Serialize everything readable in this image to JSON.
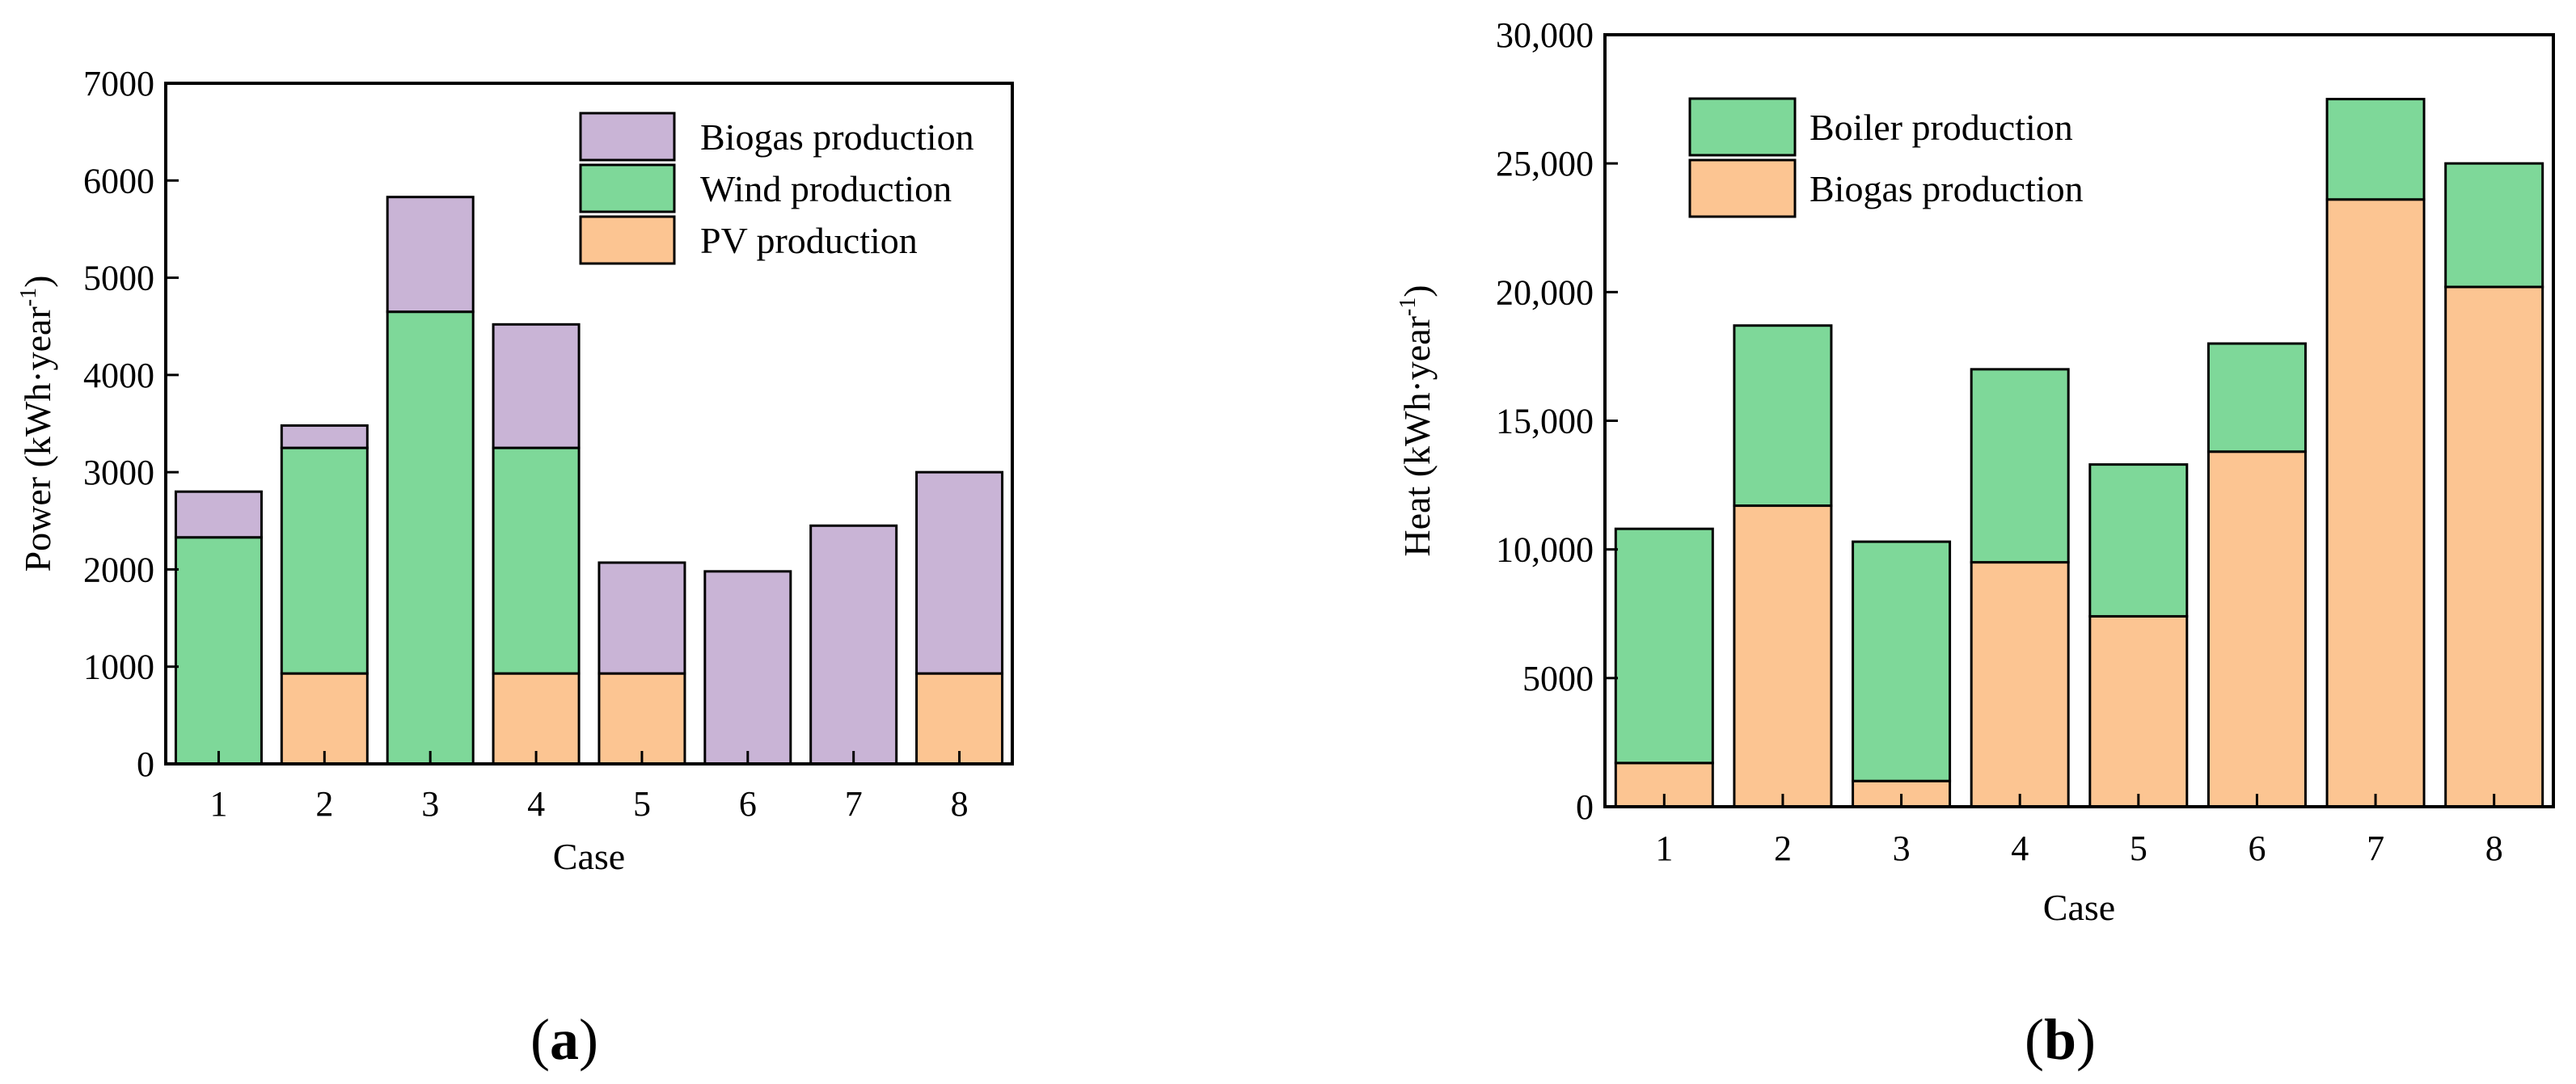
{
  "colors": {
    "biogas_power": "#c9b4d6",
    "wind": "#7ed899",
    "pv": "#fcc592",
    "boiler": "#7ed899",
    "biogas_heat": "#fcc592",
    "stroke": "#000000"
  },
  "chart_data": [
    {
      "type": "bar",
      "stacked": true,
      "panel": "a",
      "categories": [
        "1",
        "2",
        "3",
        "4",
        "5",
        "6",
        "7",
        "8"
      ],
      "series": [
        {
          "name": "PV production",
          "values": [
            0,
            930,
            0,
            930,
            930,
            0,
            0,
            930
          ]
        },
        {
          "name": "Wind production",
          "values": [
            2330,
            2320,
            4650,
            2320,
            0,
            0,
            0,
            0
          ]
        },
        {
          "name": "Biogas production",
          "values": [
            470,
            230,
            1180,
            1270,
            1140,
            1980,
            2450,
            2070
          ]
        }
      ],
      "legend": [
        "Biogas production",
        "Wind production",
        "PV production"
      ],
      "legend_position": "top-right",
      "xlabel": "Case",
      "ylabel_main": "Power (kWh·year",
      "ylabel_sup": "-1",
      "ylabel_end": ")",
      "ylim": [
        0,
        7000
      ],
      "yticks": [
        0,
        1000,
        2000,
        3000,
        4000,
        5000,
        6000,
        7000
      ],
      "ytick_labels": [
        "0",
        "1000",
        "2000",
        "3000",
        "4000",
        "5000",
        "6000",
        "7000"
      ],
      "panel_label_left": "(",
      "panel_label_letter": "a",
      "panel_label_right": ")"
    },
    {
      "type": "bar",
      "stacked": true,
      "panel": "b",
      "categories": [
        "1",
        "2",
        "3",
        "4",
        "5",
        "6",
        "7",
        "8"
      ],
      "series": [
        {
          "name": "Biogas production",
          "values": [
            1700,
            11700,
            1000,
            9500,
            7400,
            13800,
            23600,
            20200
          ]
        },
        {
          "name": "Boiler production",
          "values": [
            9100,
            7000,
            9300,
            7500,
            5900,
            4200,
            3900,
            4800
          ]
        }
      ],
      "legend": [
        "Boiler production",
        "Biogas production"
      ],
      "legend_position": "top-left",
      "xlabel": "Case",
      "ylabel_main": "Heat (kWh·year",
      "ylabel_sup": "-1",
      "ylabel_end": ")",
      "ylim": [
        0,
        30000
      ],
      "yticks": [
        0,
        5000,
        10000,
        15000,
        20000,
        25000,
        30000
      ],
      "ytick_labels": [
        "0",
        "5000",
        "10,000",
        "15,000",
        "20,000",
        "25,000",
        "30,000"
      ],
      "panel_label_left": "(",
      "panel_label_letter": "b",
      "panel_label_right": ")"
    }
  ]
}
